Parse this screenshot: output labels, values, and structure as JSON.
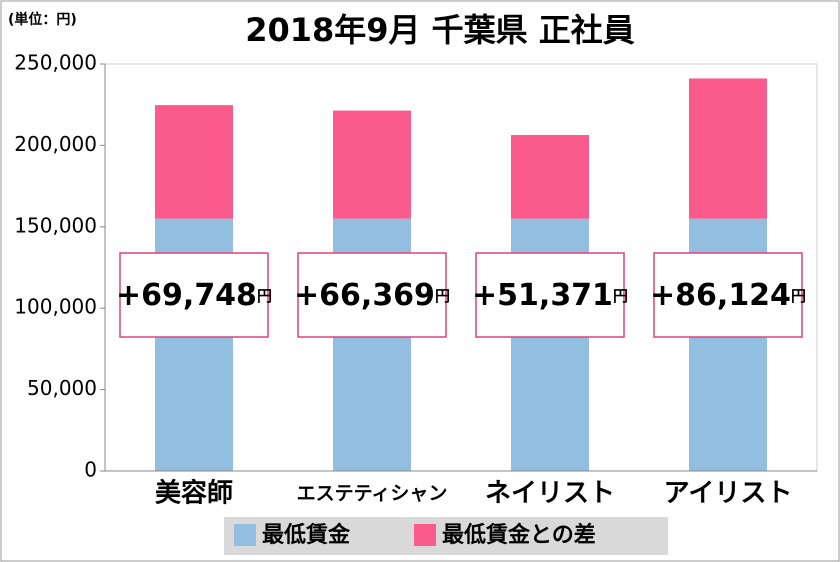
{
  "chart_data": {
    "type": "stacked-bar",
    "title": "2018年9月 千葉県 正社員",
    "unit_label": "(単位：円)",
    "categories": [
      "美容師",
      "エステティシャン",
      "ネイリスト",
      "アイリスト"
    ],
    "series": [
      {
        "name": "最低賃金",
        "color": "#92bfe0",
        "values": [
          155000,
          155000,
          155000,
          155000
        ]
      },
      {
        "name": "最低賃金との差",
        "color": "#fb5a8c",
        "values": [
          69748,
          66369,
          51371,
          86124
        ],
        "value_labels": [
          "+69,748",
          "+66,369",
          "+51,371",
          "+86,124"
        ],
        "value_label_unit": "円"
      }
    ],
    "ylim": [
      0,
      250000
    ],
    "yticks": [
      0,
      {
        "value": 50000,
        "label": "50,000"
      },
      {
        "value": 100000,
        "label": "100,000"
      },
      {
        "value": 150000,
        "label": "150,000"
      },
      {
        "value": 200000,
        "label": "200,000"
      },
      {
        "value": 250000,
        "label": "250,000"
      }
    ],
    "grid": false,
    "legend": "bottom"
  }
}
